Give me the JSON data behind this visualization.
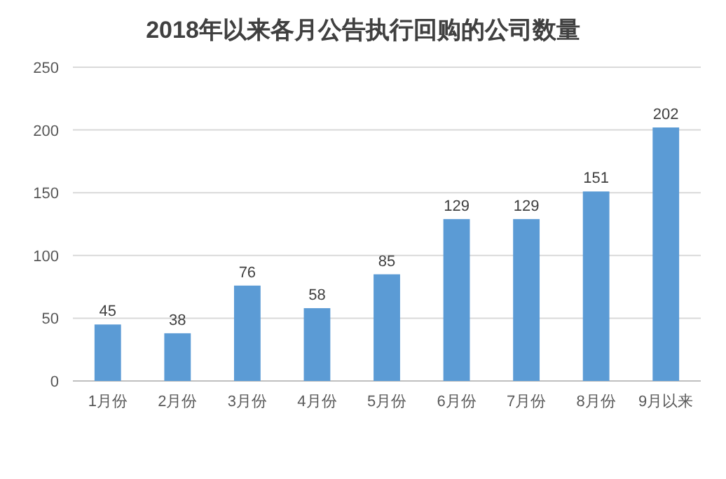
{
  "chart_data": {
    "type": "bar",
    "title": "2018年以来各月公告执行回购的公司数量",
    "categories": [
      "1月份",
      "2月份",
      "3月份",
      "4月份",
      "5月份",
      "6月份",
      "7月份",
      "8月份",
      "9月以来"
    ],
    "values": [
      45,
      38,
      76,
      58,
      85,
      129,
      129,
      151,
      202
    ],
    "color": "#5b9bd5",
    "ylim": [
      0,
      250
    ],
    "yticks": [
      0,
      50,
      100,
      150,
      200,
      250
    ],
    "grid": "y",
    "data_labels": true
  }
}
